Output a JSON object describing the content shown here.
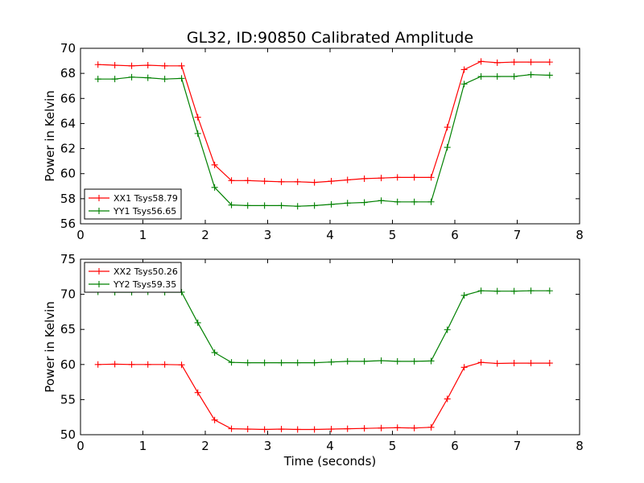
{
  "title": "GL32, ID:90850 Calibrated Amplitude",
  "colors": {
    "red": "#ff0000",
    "green": "#008000"
  },
  "chart_data": [
    {
      "type": "line",
      "ylabel": "Power in Kelvin",
      "xlabel": "",
      "xlim": [
        0,
        8
      ],
      "ylim": [
        56,
        70
      ],
      "xticks": [
        "0",
        "1",
        "2",
        "3",
        "4",
        "5",
        "6",
        "7",
        "8"
      ],
      "yticks": [
        "56",
        "58",
        "60",
        "62",
        "64",
        "66",
        "68",
        "70"
      ],
      "legend_position": "lower-left",
      "x": [
        0.28,
        0.55,
        0.82,
        1.08,
        1.35,
        1.62,
        1.88,
        2.15,
        2.42,
        2.68,
        2.95,
        3.22,
        3.48,
        3.75,
        4.02,
        4.28,
        4.55,
        4.82,
        5.08,
        5.35,
        5.62,
        5.88,
        6.15,
        6.42,
        6.68,
        6.95,
        7.22,
        7.52
      ],
      "series": [
        {
          "name": "XX1 Tsys58.79",
          "color": "red",
          "values": [
            68.7,
            68.65,
            68.6,
            68.65,
            68.6,
            68.6,
            64.5,
            60.7,
            59.45,
            59.45,
            59.4,
            59.35,
            59.35,
            59.3,
            59.4,
            59.5,
            59.6,
            59.65,
            59.7,
            59.7,
            59.7,
            63.7,
            68.3,
            68.95,
            68.85,
            68.9,
            68.9,
            68.9
          ]
        },
        {
          "name": "YY1 Tsys56.65",
          "color": "green",
          "values": [
            67.55,
            67.55,
            67.7,
            67.65,
            67.55,
            67.6,
            63.2,
            58.9,
            57.5,
            57.45,
            57.45,
            57.45,
            57.4,
            57.45,
            57.55,
            57.65,
            57.7,
            57.85,
            57.75,
            57.75,
            57.75,
            62.1,
            67.15,
            67.75,
            67.75,
            67.75,
            67.9,
            67.85
          ]
        }
      ]
    },
    {
      "type": "line",
      "ylabel": "Power in Kelvin",
      "xlabel": "Time (seconds)",
      "xlim": [
        0,
        8
      ],
      "ylim": [
        50,
        75
      ],
      "xticks": [
        "0",
        "1",
        "2",
        "3",
        "4",
        "5",
        "6",
        "7",
        "8"
      ],
      "yticks": [
        "50",
        "55",
        "60",
        "65",
        "70",
        "75"
      ],
      "legend_position": "upper-left",
      "x": [
        0.28,
        0.55,
        0.82,
        1.08,
        1.35,
        1.62,
        1.88,
        2.15,
        2.42,
        2.68,
        2.95,
        3.22,
        3.48,
        3.75,
        4.02,
        4.28,
        4.55,
        4.82,
        5.08,
        5.35,
        5.62,
        5.88,
        6.15,
        6.42,
        6.68,
        6.95,
        7.22,
        7.52
      ],
      "series": [
        {
          "name": "XX2 Tsys50.26",
          "color": "red",
          "values": [
            60.0,
            60.05,
            60.0,
            60.0,
            60.0,
            59.95,
            56.0,
            52.1,
            50.85,
            50.8,
            50.75,
            50.8,
            50.75,
            50.75,
            50.8,
            50.85,
            50.9,
            50.95,
            51.0,
            50.95,
            51.05,
            55.1,
            59.6,
            60.3,
            60.15,
            60.2,
            60.2,
            60.2
          ]
        },
        {
          "name": "YY2 Tsys59.35",
          "color": "green",
          "values": [
            70.35,
            70.3,
            70.3,
            70.35,
            70.3,
            70.3,
            65.95,
            61.7,
            60.3,
            60.25,
            60.25,
            60.25,
            60.25,
            60.25,
            60.35,
            60.45,
            60.45,
            60.55,
            60.45,
            60.45,
            60.5,
            64.95,
            69.85,
            70.5,
            70.45,
            70.45,
            70.5,
            70.5
          ]
        }
      ]
    }
  ]
}
